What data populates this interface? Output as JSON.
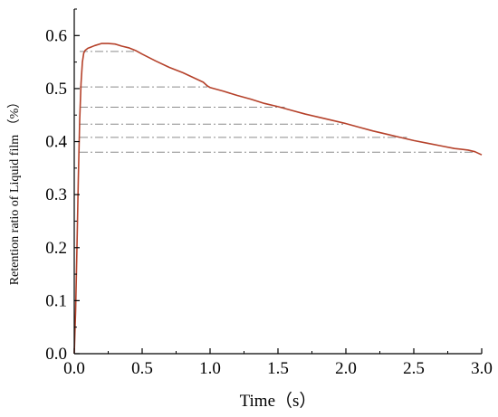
{
  "chart_data": {
    "type": "line",
    "xlabel": "Time（s）",
    "ylabel": "Retention ratio of Liquid film （%）",
    "xlim": [
      0.0,
      3.0
    ],
    "ylim": [
      0.0,
      0.65
    ],
    "x_ticks": [
      "0.0",
      "0.5",
      "1.0",
      "1.5",
      "2.0",
      "2.5",
      "3.0"
    ],
    "y_ticks": [
      "0.0",
      "0.1",
      "0.2",
      "0.3",
      "0.4",
      "0.5",
      "0.6"
    ],
    "grid": false,
    "legend": "none",
    "colors": {
      "series": "#b5412a",
      "reference": "#8c8c8c",
      "axis": "#000000"
    },
    "series": [
      {
        "x": [
          0.0,
          0.01,
          0.02,
          0.03,
          0.04,
          0.05,
          0.06,
          0.07,
          0.08,
          0.1,
          0.12,
          0.15,
          0.2,
          0.25,
          0.3,
          0.35,
          0.4,
          0.45,
          0.5,
          0.6,
          0.7,
          0.8,
          0.9,
          0.95,
          0.98,
          1.0,
          1.1,
          1.2,
          1.3,
          1.4,
          1.5,
          1.6,
          1.7,
          1.8,
          1.9,
          2.0,
          2.1,
          2.2,
          2.3,
          2.4,
          2.5,
          2.6,
          2.7,
          2.8,
          2.9,
          2.95,
          3.0
        ],
        "y": [
          0.0,
          0.08,
          0.2,
          0.33,
          0.44,
          0.51,
          0.55,
          0.567,
          0.572,
          0.576,
          0.578,
          0.581,
          0.585,
          0.585,
          0.584,
          0.58,
          0.577,
          0.572,
          0.565,
          0.552,
          0.54,
          0.53,
          0.518,
          0.512,
          0.505,
          0.502,
          0.495,
          0.487,
          0.48,
          0.472,
          0.466,
          0.459,
          0.452,
          0.446,
          0.44,
          0.434,
          0.427,
          0.42,
          0.414,
          0.408,
          0.402,
          0.397,
          0.392,
          0.387,
          0.384,
          0.381,
          0.375
        ]
      }
    ],
    "reference_lines": [
      {
        "y": 0.57,
        "x_end": 0.47
      },
      {
        "y": 0.503,
        "x_end": 0.98
      },
      {
        "y": 0.465,
        "x_end": 1.55
      },
      {
        "y": 0.433,
        "x_end": 1.98
      },
      {
        "y": 0.408,
        "x_end": 2.45
      },
      {
        "y": 0.38,
        "x_end": 2.95
      }
    ]
  }
}
